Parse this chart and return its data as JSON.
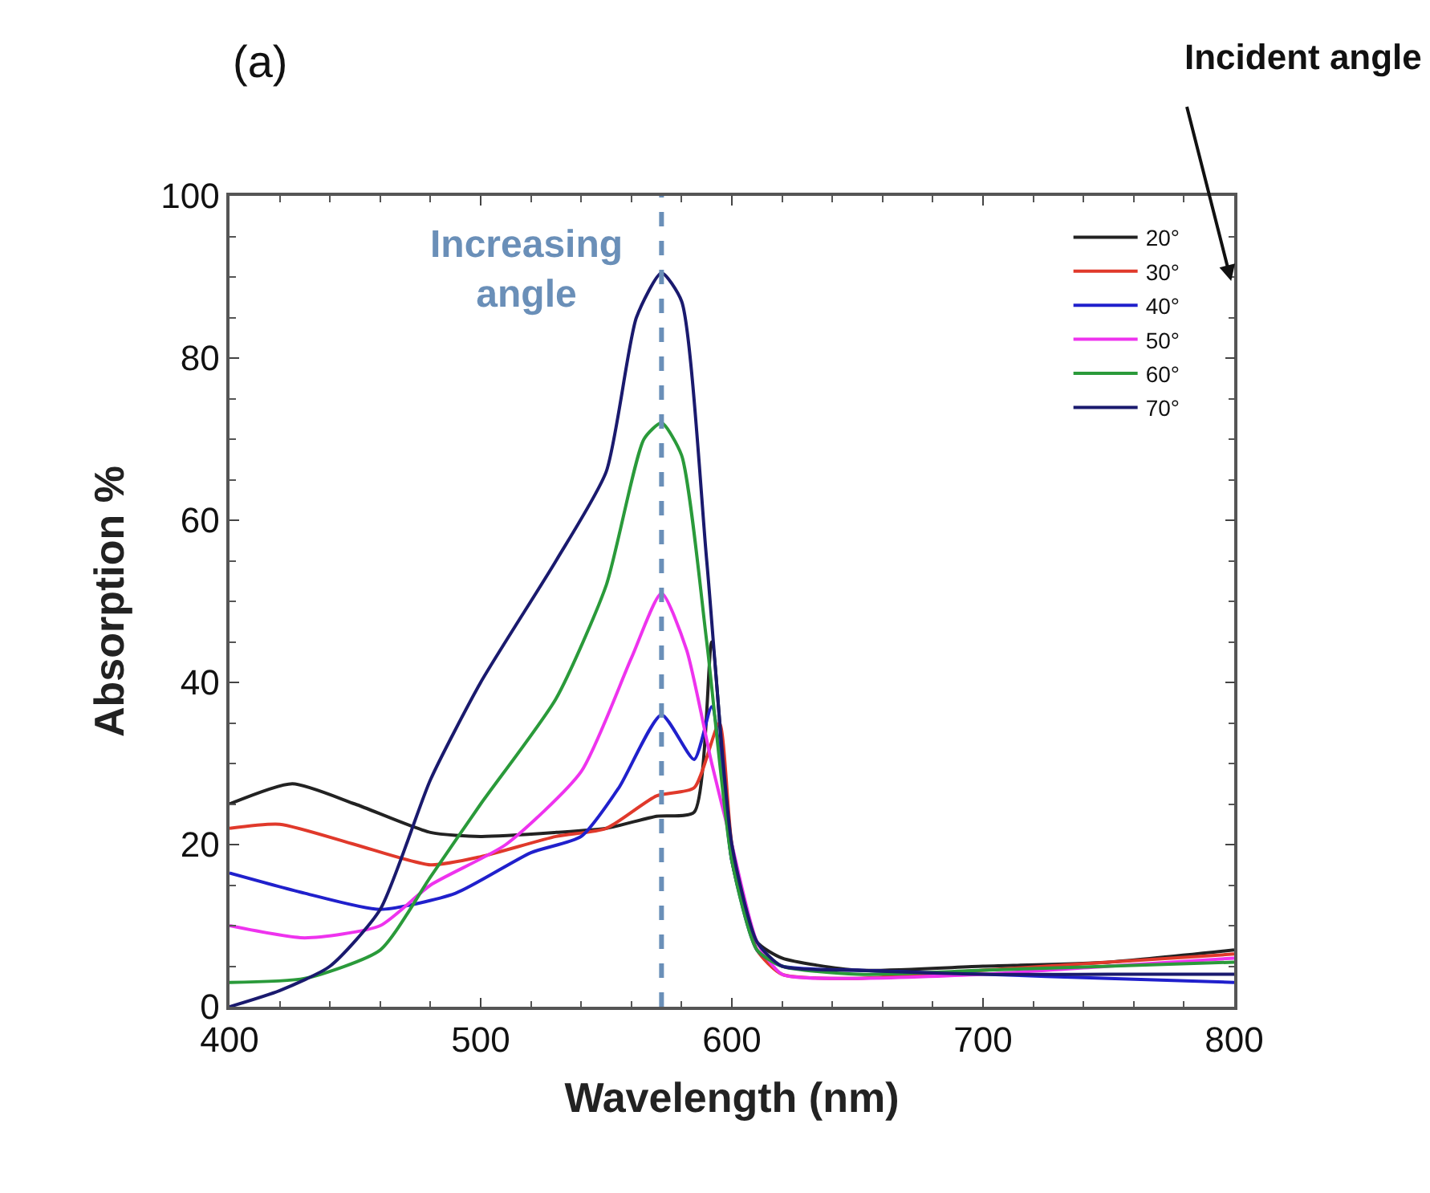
{
  "chart_data": {
    "type": "line",
    "xlabel": "Wavelength (nm)",
    "ylabel": "Absorption %",
    "xlim": [
      400,
      800
    ],
    "xticks": [
      400,
      500,
      600,
      700,
      800
    ],
    "ylim": [
      0,
      100
    ],
    "yticks": [
      0,
      20,
      40,
      60,
      80,
      100
    ],
    "legend": "top right",
    "marker": "none",
    "line_style": "solid",
    "annotations": [
      "(a)",
      "Incident angle"
    ],
    "ref_lines": [
      {
        "axis": "x",
        "value": 572,
        "label": "Increasing\nangle",
        "color": "#6a8fb8",
        "line_style": "dashed"
      }
    ],
    "series": [
      {
        "name": "20°",
        "color": "#222222",
        "x": [
          400,
          425,
          450,
          480,
          500,
          530,
          550,
          570,
          585,
          592,
          600,
          610,
          620,
          650,
          700,
          750,
          800
        ],
        "values": [
          25,
          27.5,
          25,
          21.5,
          21,
          21.5,
          22,
          23.5,
          24,
          45,
          18,
          8,
          6,
          4.5,
          5,
          5.5,
          7
        ]
      },
      {
        "name": "30°",
        "color": "#e0392b",
        "x": [
          400,
          420,
          450,
          480,
          500,
          530,
          550,
          570,
          585,
          595,
          600,
          610,
          620,
          650,
          700,
          750,
          800
        ],
        "values": [
          22,
          22.5,
          20,
          17.5,
          18.5,
          21,
          22,
          26,
          27,
          35,
          20,
          7,
          4,
          3.5,
          4.5,
          5.5,
          6.5
        ]
      },
      {
        "name": "40°",
        "color": "#2020cc",
        "x": [
          400,
          430,
          460,
          490,
          520,
          540,
          555,
          572,
          585,
          592,
          600,
          610,
          620,
          650,
          700,
          750,
          800
        ],
        "values": [
          16.5,
          14,
          12,
          14,
          19,
          21,
          27,
          36,
          30.5,
          37,
          18,
          7,
          5,
          4.5,
          4,
          3.5,
          3
        ]
      },
      {
        "name": "50°",
        "color": "#ee33ee",
        "x": [
          400,
          430,
          460,
          480,
          510,
          540,
          560,
          572,
          582,
          592,
          600,
          610,
          620,
          650,
          700,
          750,
          800
        ],
        "values": [
          10,
          8.5,
          10,
          15,
          20,
          29,
          43,
          51,
          44,
          30,
          20,
          8,
          4,
          3.5,
          4,
          5,
          6
        ]
      },
      {
        "name": "60°",
        "color": "#2a9a3a",
        "x": [
          400,
          430,
          460,
          480,
          500,
          530,
          550,
          565,
          572,
          580,
          590,
          600,
          610,
          620,
          650,
          700,
          750,
          800
        ],
        "values": [
          3,
          3.5,
          7,
          16,
          25,
          38,
          52,
          70,
          72,
          68,
          45,
          18,
          7,
          5,
          4,
          4.5,
          5,
          5.5
        ]
      },
      {
        "name": "70°",
        "color": "#1a1a6e",
        "x": [
          400,
          420,
          440,
          460,
          480,
          500,
          530,
          550,
          562,
          572,
          580,
          590,
          600,
          610,
          620,
          650,
          700,
          750,
          800
        ],
        "values": [
          0,
          2,
          5,
          12,
          28,
          40,
          55,
          66,
          85,
          90.5,
          87,
          55,
          20,
          8,
          5,
          4.5,
          4,
          4,
          4
        ]
      }
    ]
  }
}
